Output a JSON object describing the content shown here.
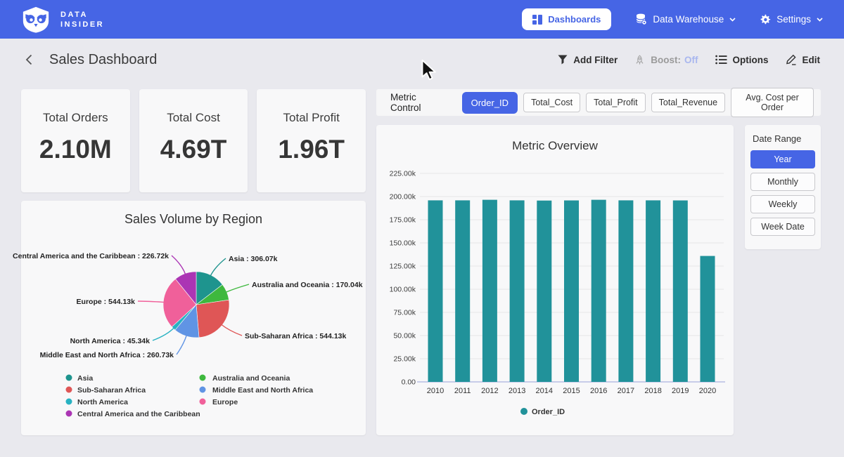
{
  "theme": {
    "accent": "#4665e5",
    "bar_teal": "#21929a",
    "boost_off_color": "#a9b7ef"
  },
  "navbar": {
    "logo_line1": "DATA",
    "logo_line2": "INSIDER",
    "dashboards_label": "Dashboards",
    "data_warehouse_label": "Data Warehouse",
    "settings_label": "Settings"
  },
  "header": {
    "title": "Sales Dashboard",
    "add_filter_label": "Add Filter",
    "boost_label": "Boost:",
    "boost_state": "Off",
    "options_label": "Options",
    "edit_label": "Edit"
  },
  "kpis": [
    {
      "label": "Total Orders",
      "value": "2.10M"
    },
    {
      "label": "Total Cost",
      "value": "4.69T"
    },
    {
      "label": "Total Profit",
      "value": "1.96T"
    }
  ],
  "metric_control": {
    "label": "Metric Control",
    "buttons": [
      {
        "label": "Order_ID",
        "selected": true
      },
      {
        "label": "Total_Cost",
        "selected": false
      },
      {
        "label": "Total_Profit",
        "selected": false
      },
      {
        "label": "Total_Revenue",
        "selected": false
      },
      {
        "label": "Avg. Cost per Order",
        "selected": false
      }
    ]
  },
  "date_range": {
    "label": "Date Range",
    "buttons": [
      {
        "label": "Year",
        "selected": true
      },
      {
        "label": "Monthly",
        "selected": false
      },
      {
        "label": "Weekly",
        "selected": false
      },
      {
        "label": "Week Date",
        "selected": false
      }
    ]
  },
  "chart_data": [
    {
      "type": "pie",
      "title": "Sales Volume by Region",
      "slices": [
        {
          "name": "Asia",
          "value": 306070,
          "label": "Asia : 306.07k",
          "color": "#1e948e"
        },
        {
          "name": "Australia and Oceania",
          "value": 170040,
          "label": "Australia and Oceania : 170.04k",
          "color": "#3eb83e"
        },
        {
          "name": "Sub-Saharan Africa",
          "value": 544130,
          "label": "Sub-Saharan Africa : 544.13k",
          "color": "#df5656"
        },
        {
          "name": "Middle East and North Africa",
          "value": 260730,
          "label": "Middle East and North Africa : 260.73k",
          "color": "#6094e4"
        },
        {
          "name": "North America",
          "value": 45340,
          "label": "North America : 45.34k",
          "color": "#28b2c2"
        },
        {
          "name": "Europe",
          "value": 544130,
          "label": "Europe : 544.13k",
          "color": "#f0609a"
        },
        {
          "name": "Central America and the Caribbean",
          "value": 226720,
          "label": "Central America and the Caribbean : 226.72k",
          "color": "#ab35b4"
        }
      ],
      "legend_columns": [
        [
          "Asia",
          "Sub-Saharan Africa",
          "North America",
          "Central America and the Caribbean"
        ],
        [
          "Australia and Oceania",
          "Middle East and North Africa",
          "Europe"
        ]
      ],
      "legend_position": "bottom"
    },
    {
      "type": "bar",
      "title": "Metric Overview",
      "categories": [
        "2010",
        "2011",
        "2012",
        "2013",
        "2014",
        "2015",
        "2016",
        "2017",
        "2018",
        "2019",
        "2020"
      ],
      "series": [
        {
          "name": "Order_ID",
          "color": "#21929a",
          "values": [
            195900,
            195900,
            196500,
            195900,
            195700,
            195800,
            196500,
            195900,
            195900,
            195800,
            135900
          ]
        }
      ],
      "xlabel": "",
      "ylabel": "",
      "ylim": [
        0,
        225000
      ],
      "y_ticks": [
        "225.00k",
        "200.00k",
        "175.00k",
        "150.00k",
        "125.00k",
        "100.00k",
        "75.00k",
        "50.00k",
        "25.00k",
        "0.00"
      ],
      "grid": true,
      "legend_position": "bottom"
    }
  ]
}
